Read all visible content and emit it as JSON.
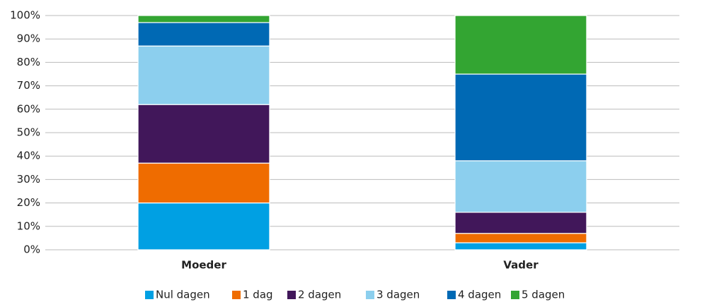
{
  "chart_data": {
    "type": "stacked_bar",
    "categories": [
      "Moeder",
      "Vader"
    ],
    "series": [
      {
        "name": "Nul dagen",
        "color": "#00a0e3",
        "values": [
          20,
          3
        ]
      },
      {
        "name": "1 dag",
        "color": "#ef6c00",
        "values": [
          17,
          4
        ]
      },
      {
        "name": "2 dagen",
        "color": "#41175a",
        "values": [
          25,
          9
        ]
      },
      {
        "name": "3 dagen",
        "color": "#8ccfee",
        "values": [
          25,
          22
        ]
      },
      {
        "name": "4 dagen",
        "color": "#0069b4",
        "values": [
          10,
          37
        ]
      },
      {
        "name": "5 dagen",
        "color": "#33a532",
        "values": [
          3,
          25
        ]
      }
    ],
    "ylim": [
      0,
      100
    ],
    "yticks": [
      {
        "value": 0,
        "label": "0%"
      },
      {
        "value": 10,
        "label": "10%"
      },
      {
        "value": 20,
        "label": "20%"
      },
      {
        "value": 30,
        "label": "30%"
      },
      {
        "value": 40,
        "label": "40%"
      },
      {
        "value": 50,
        "label": "50%"
      },
      {
        "value": 60,
        "label": "60%"
      },
      {
        "value": 70,
        "label": "70%"
      },
      {
        "value": 80,
        "label": "80%"
      },
      {
        "value": 90,
        "label": "90%"
      },
      {
        "value": 100,
        "label": "100%"
      }
    ],
    "grid": true,
    "legend": "bottom"
  }
}
